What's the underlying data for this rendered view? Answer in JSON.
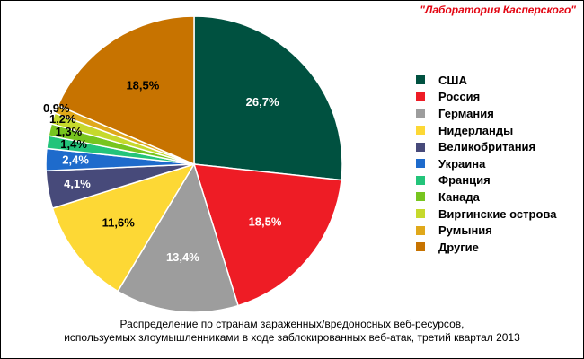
{
  "brand": {
    "label": "\"Лаборатория Касперского\""
  },
  "caption": {
    "line1": "Распределение по странам зараженных/вредоносных веб-ресурсов,",
    "line2": "используемых злоумышленниками в ходе заблокированных веб-атак, третий квартал 2013"
  },
  "chart_data": {
    "type": "pie",
    "title": "",
    "legend_position": "right",
    "slices": [
      {
        "name": "США",
        "value": 26.7,
        "label": "26,7%",
        "color": "#005140",
        "label_color": "#ffffff"
      },
      {
        "name": "Россия",
        "value": 18.5,
        "label": "18,5%",
        "color": "#ee1c25",
        "label_color": "#ffffff"
      },
      {
        "name": "Германия",
        "value": 13.4,
        "label": "13,4%",
        "color": "#9d9d9d",
        "label_color": "#ffffff"
      },
      {
        "name": "Нидерланды",
        "value": 11.6,
        "label": "11,6%",
        "color": "#fdd835",
        "label_color": "#000000"
      },
      {
        "name": "Великобритания",
        "value": 4.1,
        "label": "4,1%",
        "color": "#474a7a",
        "label_color": "#ffffff"
      },
      {
        "name": "Украина",
        "value": 2.4,
        "label": "2,4%",
        "color": "#1e6bcc",
        "label_color": "#ffffff"
      },
      {
        "name": "Франция",
        "value": 1.4,
        "label": "1,4%",
        "color": "#23c47a",
        "label_color": "#000000"
      },
      {
        "name": "Канада",
        "value": 1.3,
        "label": "1,3%",
        "color": "#77c51f",
        "label_color": "#000000"
      },
      {
        "name": "Виргинские острова",
        "value": 1.2,
        "label": "1,2%",
        "color": "#c6d92c",
        "label_color": "#000000"
      },
      {
        "name": "Румыния",
        "value": 0.9,
        "label": "0,9%",
        "color": "#e0a81a",
        "label_color": "#000000"
      },
      {
        "name": "Другие",
        "value": 18.5,
        "label": "18,5%",
        "color": "#c77300",
        "label_color": "#000000"
      }
    ]
  }
}
